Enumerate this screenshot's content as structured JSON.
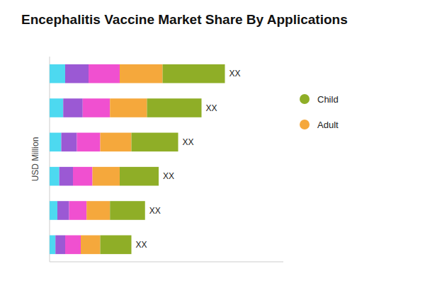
{
  "chart_data": {
    "type": "bar",
    "orientation": "horizontal",
    "stacked": true,
    "title": "Encephalitis Vaccine Market Share By Applications",
    "ylabel": "USD Million",
    "categories": [
      null,
      null,
      null,
      null,
      null,
      null
    ],
    "series": [
      {
        "color": "#4dd9f0",
        "values": [
          0.8,
          0.7,
          0.6,
          0.5,
          0.4,
          0.3
        ]
      },
      {
        "color": "#9b59d4",
        "values": [
          1.2,
          1.0,
          0.8,
          0.7,
          0.6,
          0.5
        ]
      },
      {
        "color": "#f050d0",
        "values": [
          1.6,
          1.4,
          1.2,
          1.0,
          0.9,
          0.8
        ]
      },
      {
        "name": "Adult",
        "color": "#f5a83c",
        "values": [
          2.2,
          1.9,
          1.6,
          1.4,
          1.2,
          1.0
        ]
      },
      {
        "name": "Child",
        "color": "#8fae27",
        "values": [
          3.2,
          2.8,
          2.4,
          2.0,
          1.8,
          1.6
        ]
      }
    ],
    "annotations": [
      "XX",
      "XX",
      "XX",
      "XX",
      "XX",
      "XX"
    ],
    "xlim": [
      0,
      12
    ],
    "tick_labels": false,
    "grid": false
  }
}
